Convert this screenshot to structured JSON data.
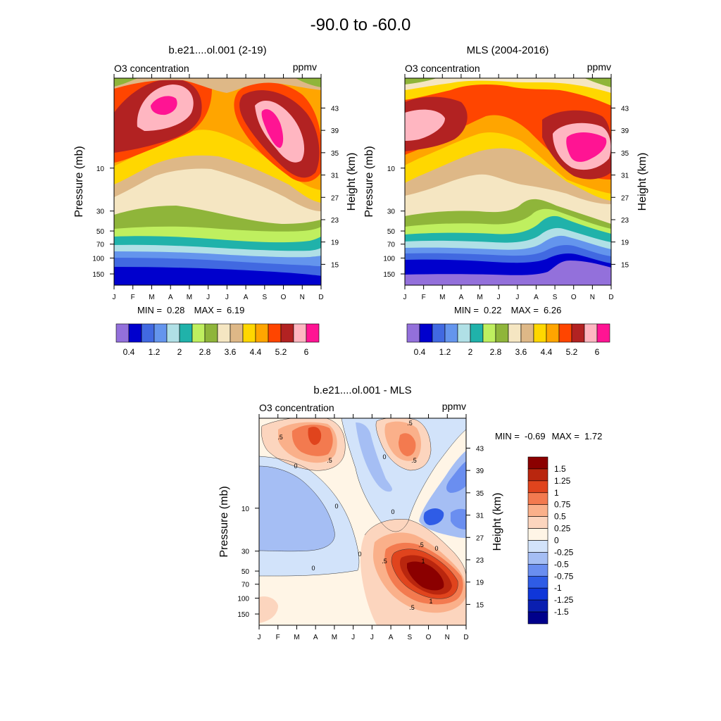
{
  "page_title": "-90.0 to -60.0",
  "months": [
    "J",
    "F",
    "M",
    "A",
    "M",
    "J",
    "J",
    "A",
    "S",
    "O",
    "N",
    "D"
  ],
  "colors": {
    "levels": [
      "#9370db",
      "#0000cd",
      "#4169e1",
      "#6495ed",
      "#b0e0e6",
      "#20b2aa",
      "#bfef5f",
      "#8fb53a",
      "#f5e6c2",
      "#deb887",
      "#ffd700",
      "#ffa500",
      "#ff4500",
      "#b22222",
      "#ffb6c1",
      "#ff1493"
    ],
    "diff_levels": [
      "#00008b",
      "#0a1fb0",
      "#0f36d9",
      "#2f5ce6",
      "#6a8ef0",
      "#a5bef4",
      "#d2e3fa",
      "#fff5e6",
      "#fcd5be",
      "#fab08a",
      "#f37a4f",
      "#e0441d",
      "#b9260e",
      "#8b0000"
    ]
  },
  "chart_data": [
    {
      "type": "contour",
      "title": "b.e21....ol.001 (2-19)",
      "subtitle_left": "O3 concentration",
      "units": "ppmv",
      "ylabel_left": "Pressure (mb)",
      "ylabel_right": "Height (km)",
      "x": [
        "J",
        "F",
        "M",
        "A",
        "M",
        "J",
        "J",
        "A",
        "S",
        "O",
        "N",
        "D"
      ],
      "pressure_ticks": [
        10,
        30,
        50,
        70,
        100,
        150
      ],
      "height_ticks": [
        43,
        39,
        35,
        31,
        27,
        23,
        19,
        15
      ],
      "pressure_range_mb": [
        1,
        200
      ],
      "min": "0.28",
      "max": "6.19",
      "min_label": "MIN =",
      "max_label": "MAX =",
      "colorbar": {
        "orientation": "horizontal",
        "levels": [
          0.4,
          0.8,
          1.2,
          1.6,
          2,
          2.4,
          2.8,
          3.2,
          3.6,
          4,
          4.4,
          4.8,
          5.2,
          5.6,
          6
        ],
        "labels": [
          "0.4",
          "1.2",
          "2",
          "2.8",
          "3.6",
          "4.4",
          "5.2",
          "6"
        ]
      },
      "ozone_peaks_ppmv": [
        {
          "month": "Apr",
          "height_km": 40,
          "value": 6.19
        },
        {
          "month": "Sep-Oct",
          "height_km": 37,
          "value": 6.0
        }
      ]
    },
    {
      "type": "contour",
      "title": "MLS (2004-2016)",
      "subtitle_left": "O3 concentration",
      "units": "ppmv",
      "ylabel_left": "Pressure (mb)",
      "ylabel_right": "Height (km)",
      "x": [
        "J",
        "F",
        "M",
        "A",
        "M",
        "J",
        "J",
        "A",
        "S",
        "O",
        "N",
        "D"
      ],
      "pressure_ticks": [
        10,
        30,
        50,
        70,
        100,
        150
      ],
      "height_ticks": [
        43,
        39,
        35,
        31,
        27,
        23,
        19,
        15
      ],
      "pressure_range_mb": [
        1,
        200
      ],
      "min": "0.22",
      "max": "6.26",
      "min_label": "MIN =",
      "max_label": "MAX =",
      "colorbar": {
        "orientation": "horizontal",
        "levels": [
          0.4,
          0.8,
          1.2,
          1.6,
          2,
          2.4,
          2.8,
          3.2,
          3.6,
          4,
          4.4,
          4.8,
          5.2,
          5.6,
          6
        ],
        "labels": [
          "0.4",
          "1.2",
          "2",
          "2.8",
          "3.6",
          "4.4",
          "5.2",
          "6"
        ]
      },
      "ozone_peaks_ppmv": [
        {
          "month": "Oct-Nov",
          "height_km": 35,
          "value": 6.26
        }
      ]
    },
    {
      "type": "contour",
      "title": "b.e21....ol.001 - MLS",
      "subtitle_left": "O3 concentration",
      "units": "ppmv",
      "ylabel_left": "Pressure (mb)",
      "ylabel_right": "Height (km)",
      "x": [
        "J",
        "F",
        "M",
        "A",
        "M",
        "J",
        "J",
        "A",
        "S",
        "O",
        "N",
        "D"
      ],
      "pressure_ticks": [
        10,
        30,
        50,
        70,
        100,
        150
      ],
      "height_ticks": [
        43,
        39,
        35,
        31,
        27,
        23,
        19,
        15
      ],
      "pressure_range_mb": [
        1,
        200
      ],
      "min": "-0.69",
      "max": "1.72",
      "min_label": "MIN =",
      "max_label": "MAX =",
      "contour_labels": [
        ".5",
        "0",
        ".5",
        "0",
        "0",
        "0",
        ".5",
        ".5",
        "0",
        "0",
        "1",
        ".5",
        "1",
        ".5",
        "0",
        ".5"
      ],
      "colorbar": {
        "orientation": "vertical",
        "levels": [
          1.5,
          1.25,
          1,
          0.75,
          0.5,
          0.25,
          0,
          -0.25,
          -0.5,
          -0.75,
          -1,
          -1.25,
          -1.5
        ],
        "labels": [
          "1.5",
          "1.25",
          "1",
          "0.75",
          "0.5",
          "0.25",
          "0",
          "-0.25",
          "-0.5",
          "-0.75",
          "-1",
          "-1.25",
          "-1.5"
        ]
      },
      "difference_extrema_ppmv": [
        {
          "month": "Sep-Oct",
          "pressure_mb": 60,
          "value": 1.72
        },
        {
          "month": "Apr",
          "height_km": 43,
          "value": 1.0
        },
        {
          "month": "Nov-Dec",
          "height_km": 30,
          "value": -0.69
        }
      ]
    }
  ]
}
